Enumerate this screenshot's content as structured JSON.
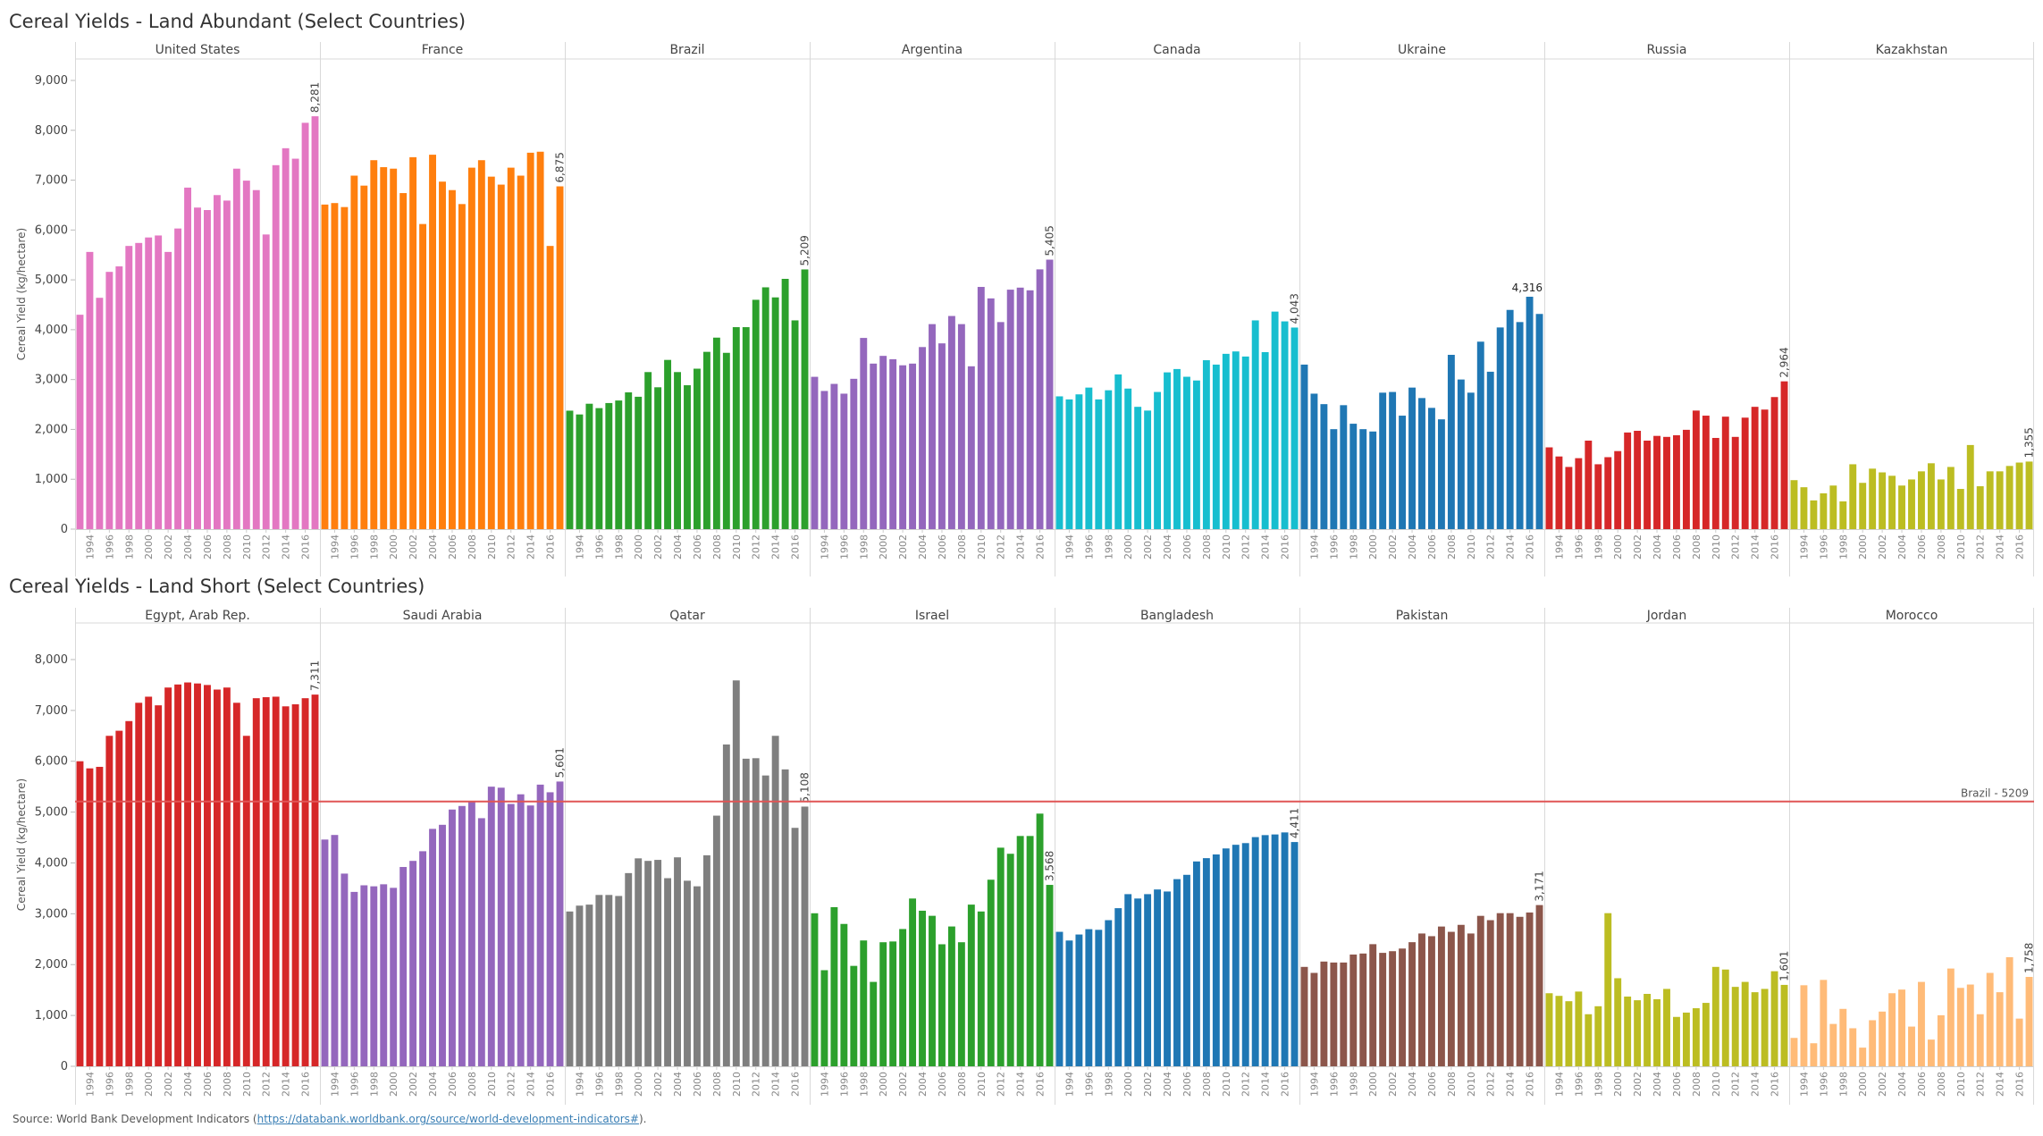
{
  "chart_data": [
    {
      "type": "bar",
      "title": "Cereal Yields - Land Abundant (Select Countries)",
      "ylabel": "Cereal Yield (kg/hectare)",
      "xlabel": "",
      "ylim": [
        0,
        9430
      ],
      "yticks": [
        0,
        1000,
        2000,
        3000,
        4000,
        5000,
        6000,
        7000,
        8000,
        9000
      ],
      "ytick_labels": [
        "0",
        "1,000",
        "2,000",
        "3,000",
        "4,000",
        "5,000",
        "6,000",
        "7,000",
        "8,000",
        "9,000"
      ],
      "years": [
        1993,
        1994,
        1995,
        1996,
        1997,
        1998,
        1999,
        2000,
        2001,
        2002,
        2003,
        2004,
        2005,
        2006,
        2007,
        2008,
        2009,
        2010,
        2011,
        2012,
        2013,
        2014,
        2015,
        2016,
        2017
      ],
      "year_tick_labels": [
        "1994",
        "1996",
        "1998",
        "2000",
        "2002",
        "2004",
        "2006",
        "2008",
        "2010",
        "2012",
        "2014",
        "2016"
      ],
      "grid": false,
      "series": [
        {
          "name": "United States",
          "color": "#e377c2",
          "last_label": "8,281",
          "values": [
            4300,
            5560,
            4640,
            5160,
            5270,
            5680,
            5740,
            5850,
            5890,
            5560,
            6030,
            6850,
            6450,
            6400,
            6700,
            6590,
            7230,
            6990,
            6800,
            5910,
            7300,
            7640,
            7430,
            8150,
            8281
          ]
        },
        {
          "name": "France",
          "color": "#ff7f0e",
          "last_label": "6,875",
          "values": [
            6510,
            6540,
            6460,
            7090,
            6890,
            7400,
            7260,
            7230,
            6740,
            7460,
            6120,
            7510,
            6970,
            6800,
            6520,
            7250,
            7400,
            7070,
            6910,
            7250,
            7090,
            7550,
            7570,
            5680,
            6875
          ]
        },
        {
          "name": "Brazil",
          "color": "#2ca02c",
          "last_label": "5,209",
          "values": [
            2376,
            2300,
            2515,
            2427,
            2529,
            2580,
            2743,
            2655,
            3150,
            2845,
            3394,
            3150,
            2886,
            3218,
            3556,
            3841,
            3536,
            4051,
            4051,
            4600,
            4850,
            4648,
            5020,
            4187,
            5209
          ]
        },
        {
          "name": "Argentina",
          "color": "#9467bd",
          "last_label": "5,405",
          "values": [
            3055,
            2771,
            2913,
            2717,
            3015,
            3835,
            3320,
            3475,
            3408,
            3286,
            3320,
            3652,
            4112,
            3726,
            4275,
            4112,
            3266,
            4858,
            4628,
            4153,
            4803,
            4844,
            4790,
            5210,
            5405
          ]
        },
        {
          "name": "Canada",
          "color": "#17becf",
          "last_label": "4,043",
          "values": [
            2663,
            2602,
            2703,
            2839,
            2602,
            2785,
            3103,
            2819,
            2453,
            2378,
            2751,
            3144,
            3211,
            3056,
            2981,
            3388,
            3300,
            3516,
            3564,
            3462,
            4187,
            3550,
            4363,
            4167,
            4043
          ]
        },
        {
          "name": "Ukraine",
          "color": "#1f77b4",
          "last_label": "4,316",
          "values": [
            3300,
            2717,
            2507,
            2005,
            2486,
            2114,
            2005,
            1958,
            2737,
            2751,
            2276,
            2839,
            2629,
            2432,
            2202,
            3496,
            3001,
            2737,
            3760,
            3157,
            4045,
            4397,
            4153,
            4661,
            4316
          ]
        },
        {
          "name": "Russia",
          "color": "#d62728",
          "last_label": "2,964",
          "values": [
            1640,
            1457,
            1247,
            1423,
            1775,
            1301,
            1443,
            1565,
            1938,
            1972,
            1775,
            1870,
            1850,
            1883,
            1992,
            2378,
            2276,
            1829,
            2256,
            1850,
            2236,
            2453,
            2398,
            2649,
            2964
          ]
        },
        {
          "name": "Kazakhstan",
          "color": "#bcbd22",
          "last_label": "1,355",
          "values": [
            982,
            840,
            576,
            718,
            874,
            556,
            1301,
            928,
            1213,
            1138,
            1070,
            874,
            996,
            1159,
            1321,
            996,
            1247,
            806,
            1687,
            860,
            1159,
            1159,
            1267,
            1335,
            1355
          ]
        }
      ]
    },
    {
      "type": "bar",
      "title": "Cereal Yields - Land Short (Select Countries)",
      "ylabel": "Cereal Yield (kg/hectare)",
      "xlabel": "",
      "ylim": [
        0,
        8720
      ],
      "yticks": [
        0,
        1000,
        2000,
        3000,
        4000,
        5000,
        6000,
        7000,
        8000
      ],
      "ytick_labels": [
        "0",
        "1,000",
        "2,000",
        "3,000",
        "4,000",
        "5,000",
        "6,000",
        "7,000",
        "8,000"
      ],
      "years": [
        1993,
        1994,
        1995,
        1996,
        1997,
        1998,
        1999,
        2000,
        2001,
        2002,
        2003,
        2004,
        2005,
        2006,
        2007,
        2008,
        2009,
        2010,
        2011,
        2012,
        2013,
        2014,
        2015,
        2016,
        2017
      ],
      "year_tick_labels": [
        "1994",
        "1996",
        "1998",
        "2000",
        "2002",
        "2004",
        "2006",
        "2008",
        "2010",
        "2012",
        "2014",
        "2016"
      ],
      "grid": false,
      "reference_line": {
        "label": "Brazil - 5209",
        "value": 5209,
        "color": "#e05555"
      },
      "series": [
        {
          "name": "Egypt, Arab Rep.",
          "color": "#d62728",
          "last_label": "7,311",
          "values": [
            6000,
            5860,
            5890,
            6500,
            6600,
            6790,
            7150,
            7270,
            7100,
            7450,
            7510,
            7550,
            7530,
            7500,
            7410,
            7450,
            7150,
            6500,
            7240,
            7260,
            7270,
            7080,
            7120,
            7240,
            7311
          ]
        },
        {
          "name": "Saudi Arabia",
          "color": "#9467bd",
          "last_label": "5,601",
          "values": [
            4460,
            4550,
            3790,
            3430,
            3560,
            3540,
            3580,
            3510,
            3920,
            4040,
            4230,
            4670,
            4750,
            5050,
            5120,
            5200,
            4880,
            5500,
            5480,
            5160,
            5350,
            5130,
            5540,
            5390,
            5601
          ]
        },
        {
          "name": "Qatar",
          "color": "#7f7f7f",
          "last_label": "5,108",
          "values": [
            3045,
            3160,
            3180,
            3370,
            3370,
            3350,
            3800,
            4090,
            4040,
            4060,
            3700,
            4110,
            3650,
            3540,
            4150,
            4930,
            6330,
            7590,
            6050,
            6060,
            5720,
            6500,
            5840,
            4690,
            5108
          ]
        },
        {
          "name": "Israel",
          "color": "#2ca02c",
          "last_label": "3,568",
          "values": [
            3010,
            1890,
            3130,
            2800,
            1975,
            2475,
            1660,
            2440,
            2455,
            2700,
            3300,
            3060,
            2960,
            2400,
            2750,
            2440,
            3180,
            3045,
            3670,
            4300,
            4180,
            4530,
            4530,
            4970,
            3568
          ]
        },
        {
          "name": "Bangladesh",
          "color": "#1f77b4",
          "last_label": "4,411",
          "values": [
            2645,
            2474,
            2592,
            2697,
            2684,
            2874,
            3110,
            3386,
            3300,
            3386,
            3478,
            3438,
            3681,
            3766,
            4029,
            4094,
            4167,
            4285,
            4357,
            4390,
            4508,
            4547,
            4560,
            4600,
            4411
          ]
        },
        {
          "name": "Pakistan",
          "color": "#8c564b",
          "last_label": "3,171",
          "values": [
            1955,
            1837,
            2060,
            2041,
            2041,
            2198,
            2218,
            2402,
            2231,
            2264,
            2316,
            2441,
            2612,
            2559,
            2749,
            2645,
            2782,
            2612,
            2959,
            2874,
            3012,
            3012,
            2940,
            3025,
            3171
          ]
        },
        {
          "name": "Jordan",
          "color": "#bcbd22",
          "last_label": "1,601",
          "values": [
            1437,
            1385,
            1280,
            1470,
            1024,
            1181,
            3012,
            1732,
            1371,
            1299,
            1424,
            1319,
            1522,
            971,
            1056,
            1142,
            1247,
            1955,
            1903,
            1562,
            1660,
            1457,
            1522,
            1870,
            1601
          ]
        },
        {
          "name": "Morocco",
          "color": "#ffbb78",
          "last_label": "1,758",
          "values": [
            558,
            1594,
            453,
            1699,
            833,
            1129,
            748,
            367,
            906,
            1076,
            1437,
            1509,
            781,
            1660,
            525,
            1004,
            1923,
            1542,
            1608,
            1024,
            1837,
            1457,
            2146,
            938,
            1758
          ]
        }
      ]
    }
  ],
  "source": {
    "prefix": "Source: World Bank Development Indicators (",
    "link": "https://databank.worldbank.org/source/world-development-indicators#",
    "suffix": ")."
  }
}
